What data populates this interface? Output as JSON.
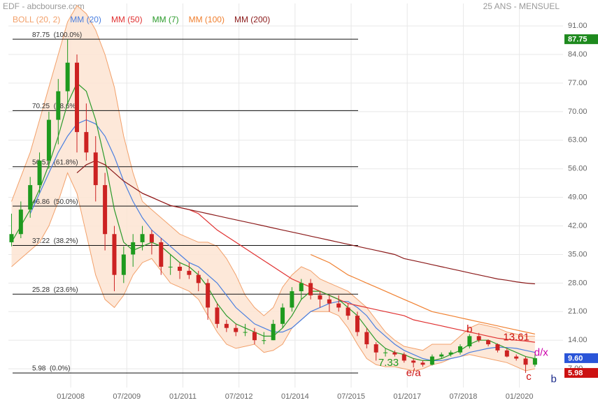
{
  "chart_data": {
    "type": "candlestick",
    "title": "EDF - abcbourse.com",
    "subtitle": "25 ANS - MENSUEL",
    "x": [
      "06/2006",
      "09/2006",
      "12/2006",
      "03/2007",
      "06/2007",
      "09/2007",
      "12/2007",
      "03/2008",
      "06/2008",
      "09/2008",
      "12/2008",
      "03/2009",
      "06/2009",
      "09/2009",
      "12/2009",
      "03/2010",
      "06/2010",
      "09/2010",
      "12/2010",
      "03/2011",
      "06/2011",
      "09/2011",
      "12/2011",
      "03/2012",
      "06/2012",
      "09/2012",
      "12/2012",
      "03/2013",
      "06/2013",
      "09/2013",
      "12/2013",
      "03/2014",
      "06/2014",
      "09/2014",
      "12/2014",
      "03/2015",
      "06/2015",
      "09/2015",
      "12/2015",
      "03/2016",
      "06/2016",
      "09/2016",
      "12/2016",
      "03/2017",
      "06/2017",
      "09/2017",
      "12/2017",
      "03/2018",
      "06/2018",
      "09/2018",
      "12/2018",
      "03/2019",
      "06/2019",
      "09/2019",
      "12/2019",
      "03/2020",
      "06/2020"
    ],
    "candles": {
      "open": [
        38,
        40,
        46,
        52,
        58,
        68,
        75,
        82,
        65,
        60,
        52,
        40,
        30,
        35,
        38,
        40,
        38,
        32,
        32,
        31,
        30,
        28,
        22,
        18,
        17,
        16,
        16,
        14,
        14,
        18,
        22,
        26,
        28,
        25,
        24,
        23,
        22,
        20,
        16,
        13,
        11,
        11,
        10.5,
        9,
        8.5,
        8,
        10,
        10.5,
        11,
        12.5,
        15,
        14,
        13,
        11.5,
        10,
        9.5,
        8
      ],
      "high": [
        45,
        48,
        54,
        60,
        70,
        78,
        87.75,
        84,
        72,
        64,
        55,
        42,
        37,
        40,
        42,
        41,
        39,
        35,
        33,
        33,
        31,
        29,
        23,
        19,
        18,
        18,
        17,
        16,
        19,
        23,
        27,
        29,
        29,
        26,
        25,
        25,
        23,
        21,
        17,
        13.5,
        12,
        11.5,
        11,
        9.5,
        9,
        10.5,
        11,
        11.5,
        13,
        15.5,
        15.8,
        14.2,
        13.2,
        12,
        10.5,
        10,
        10.5
      ],
      "low": [
        37,
        39,
        44,
        50,
        56,
        62,
        72,
        60,
        58,
        48,
        36,
        26,
        28,
        32,
        36,
        35,
        30,
        30,
        29,
        29,
        26,
        19,
        17,
        16,
        15,
        15,
        13,
        13,
        14,
        17,
        21,
        24,
        24,
        22,
        21,
        21,
        19,
        15,
        12,
        9,
        10,
        10,
        8.5,
        7.33,
        7.5,
        7.8,
        9.5,
        10,
        10.5,
        12,
        13.5,
        12.5,
        11,
        9.8,
        9,
        5.98,
        7.5
      ],
      "close": [
        40,
        46,
        52,
        58,
        68,
        75,
        82,
        65,
        60,
        52,
        40,
        30,
        35,
        38,
        40,
        38,
        32,
        32,
        31,
        30,
        28,
        22,
        18,
        17,
        16,
        16,
        14,
        14,
        18,
        22,
        26,
        28,
        25,
        24,
        23,
        22,
        20,
        16,
        13,
        11,
        11,
        10.5,
        9,
        8.5,
        8,
        10,
        10.5,
        11,
        12.5,
        15,
        14,
        13,
        11.5,
        10,
        9.5,
        8,
        9.6
      ],
      "up_color": "#1e9a1e",
      "down_color": "#cc2222"
    },
    "bollinger": {
      "name": "BOLL (20, 2)",
      "color": "#f2a06a",
      "fill": "#fde4d2",
      "upper": [
        48,
        54,
        60,
        68,
        76,
        84,
        92,
        96,
        94,
        90,
        84,
        76,
        64,
        55,
        48,
        46,
        44,
        42,
        40,
        39,
        38,
        38,
        37,
        34,
        30,
        25,
        22,
        20,
        22,
        27,
        30,
        32,
        31,
        29,
        28,
        27,
        26,
        24,
        22,
        19,
        16,
        14,
        12.5,
        12,
        11.5,
        13,
        13,
        13,
        15,
        17,
        18,
        17.5,
        17,
        16,
        15.5,
        15,
        15
      ],
      "lower": [
        32,
        34,
        36,
        38,
        42,
        48,
        55,
        50,
        40,
        30,
        24,
        22,
        25,
        30,
        33,
        34,
        31,
        28,
        27,
        26,
        24,
        20,
        16,
        13,
        12,
        12.5,
        13,
        11,
        11.5,
        13,
        17,
        19,
        21,
        21,
        21,
        20,
        17,
        13,
        9.5,
        8,
        7.5,
        7.5,
        7,
        6.5,
        7,
        8,
        8.5,
        9.5,
        10,
        10.5,
        10,
        9.5,
        9,
        8.5,
        7.5,
        6.5,
        7
      ]
    },
    "series": [
      {
        "name": "MM (20)",
        "color": "#4a7fe0",
        "values": [
          null,
          null,
          45,
          50,
          55,
          60,
          64,
          67,
          68,
          67,
          64,
          59,
          53,
          48,
          44,
          41,
          39,
          37,
          35,
          33,
          32,
          30,
          28,
          25,
          22,
          20,
          18,
          17,
          16,
          16,
          17,
          19,
          21,
          22,
          23,
          23.5,
          23.5,
          22,
          20,
          17,
          15,
          13,
          11.5,
          10.5,
          9.5,
          9,
          9,
          9.5,
          10,
          11,
          11.5,
          12,
          12.3,
          12.2,
          12,
          11.5,
          11
        ]
      },
      {
        "name": "MM (50)",
        "color": "#e03030",
        "values": [
          null,
          null,
          null,
          null,
          null,
          null,
          null,
          null,
          null,
          null,
          null,
          null,
          null,
          null,
          50,
          49,
          48,
          47,
          46.5,
          46,
          45,
          43,
          41,
          39.5,
          38,
          36.5,
          35,
          33.5,
          32,
          30.5,
          29,
          28,
          27,
          26,
          25,
          24,
          23,
          22.5,
          22,
          21.5,
          21,
          20.5,
          20,
          19,
          18.5,
          18,
          17.5,
          17,
          16.5,
          16,
          15.5,
          15,
          14.5,
          14.2,
          14,
          13.8,
          13.5
        ]
      },
      {
        "name": "MM (7)",
        "color": "#2a9a2a",
        "values": [
          38,
          42,
          46,
          51,
          57,
          64,
          72,
          77,
          75,
          68,
          58,
          46,
          38,
          36,
          37,
          38,
          37,
          35,
          33,
          32,
          30,
          27,
          23,
          20,
          18,
          17,
          16,
          15,
          15,
          17,
          20,
          24,
          26,
          26,
          25,
          24,
          22,
          20,
          17,
          14,
          12,
          11,
          10.5,
          9.5,
          9,
          9,
          9.5,
          10.5,
          11.5,
          13,
          14,
          14,
          13,
          12,
          11,
          10,
          9.5
        ]
      },
      {
        "name": "MM (100)",
        "color": "#f08030",
        "values": [
          null,
          null,
          null,
          null,
          null,
          null,
          null,
          null,
          null,
          null,
          null,
          null,
          null,
          null,
          null,
          null,
          null,
          null,
          null,
          null,
          null,
          null,
          null,
          null,
          null,
          null,
          null,
          null,
          null,
          null,
          null,
          null,
          35,
          34,
          33,
          31.5,
          30,
          29,
          28,
          27,
          26,
          25,
          24,
          23,
          22,
          21,
          20.5,
          20,
          19.5,
          19,
          18.5,
          18,
          17.5,
          17,
          16.5,
          16,
          15.5
        ]
      },
      {
        "name": "MM (200)",
        "color": "#8b1a1a",
        "values": [
          null,
          null,
          null,
          null,
          null,
          null,
          null,
          55,
          57,
          58,
          57,
          55,
          53,
          51.5,
          50,
          49,
          48,
          47,
          46.5,
          46,
          45.5,
          45,
          44.5,
          44,
          43.5,
          43,
          42.5,
          42,
          41.5,
          41,
          40.5,
          40,
          39.5,
          39,
          38.5,
          38,
          37.5,
          37,
          36.5,
          36,
          35.5,
          35,
          34,
          33.5,
          33,
          32.5,
          32,
          31.5,
          31,
          30.5,
          30,
          29.5,
          29,
          28.7,
          28.3,
          28,
          27.8
        ]
      }
    ],
    "levels": [
      {
        "value": 87.75,
        "label": "87.75  (100.0%)"
      },
      {
        "value": 70.25,
        "label": "70.25  (78.6%)"
      },
      {
        "value": 56.51,
        "label": "56.51  (61.8%)"
      },
      {
        "value": 46.86,
        "label": "46.86  (50.0%)"
      },
      {
        "value": 37.22,
        "label": "37.22  (38.2%)"
      },
      {
        "value": 25.28,
        "label": "25.28  (23.6%)"
      },
      {
        "value": 5.98,
        "label": "5.98  (0.0%)"
      }
    ],
    "annotations": [
      {
        "text": "b",
        "x": "09/2018",
        "y": 16.6,
        "color": "#cc1111"
      },
      {
        "text": "13.61",
        "x": "12/2019",
        "y": 14.6,
        "color": "#cc1111"
      },
      {
        "text": "d/x",
        "x": "08/2020",
        "y": 10.9,
        "color": "#cc00aa"
      },
      {
        "text": "7.33",
        "x": "07/2016",
        "y": 8.4,
        "color": "#1e9a1e"
      },
      {
        "text": "e/a",
        "x": "03/2017",
        "y": 5.9,
        "color": "#cc1111"
      },
      {
        "text": "c",
        "x": "04/2020",
        "y": 5.0,
        "color": "#cc1111"
      },
      {
        "text": "b",
        "x": "12/2020",
        "y": 4.4,
        "color": "#1a2a8a"
      }
    ],
    "price_tags": [
      {
        "value": 87.75,
        "color": "#1e8a1e"
      },
      {
        "value": 9.6,
        "label": "9.60",
        "color": "#2a55d8"
      },
      {
        "value": 5.98,
        "color": "#cc1111"
      }
    ],
    "xlim": [
      "05/2006",
      "03/2021"
    ],
    "xticks": [
      "01/2008",
      "07/2009",
      "01/2011",
      "07/2012",
      "01/2014",
      "07/2015",
      "01/2017",
      "07/2018",
      "01/2020"
    ],
    "ylim": [
      2.4,
      96.5
    ],
    "yticks": [
      {
        "value": 91,
        "label": "91.00"
      },
      {
        "value": 84,
        "label": "84.00"
      },
      {
        "value": 77,
        "label": "77.00"
      },
      {
        "value": 70,
        "label": "70.00"
      },
      {
        "value": 63,
        "label": "63.00"
      },
      {
        "value": 56,
        "label": "56.00"
      },
      {
        "value": 49,
        "label": "49.00"
      },
      {
        "value": 42,
        "label": "42.00"
      },
      {
        "value": 35,
        "label": "35.00"
      },
      {
        "value": 28,
        "label": "28.00"
      },
      {
        "value": 21,
        "label": "21.00"
      },
      {
        "value": 14,
        "label": "14.00"
      },
      {
        "value": 7,
        "label": "7.00"
      }
    ],
    "grid": true
  }
}
